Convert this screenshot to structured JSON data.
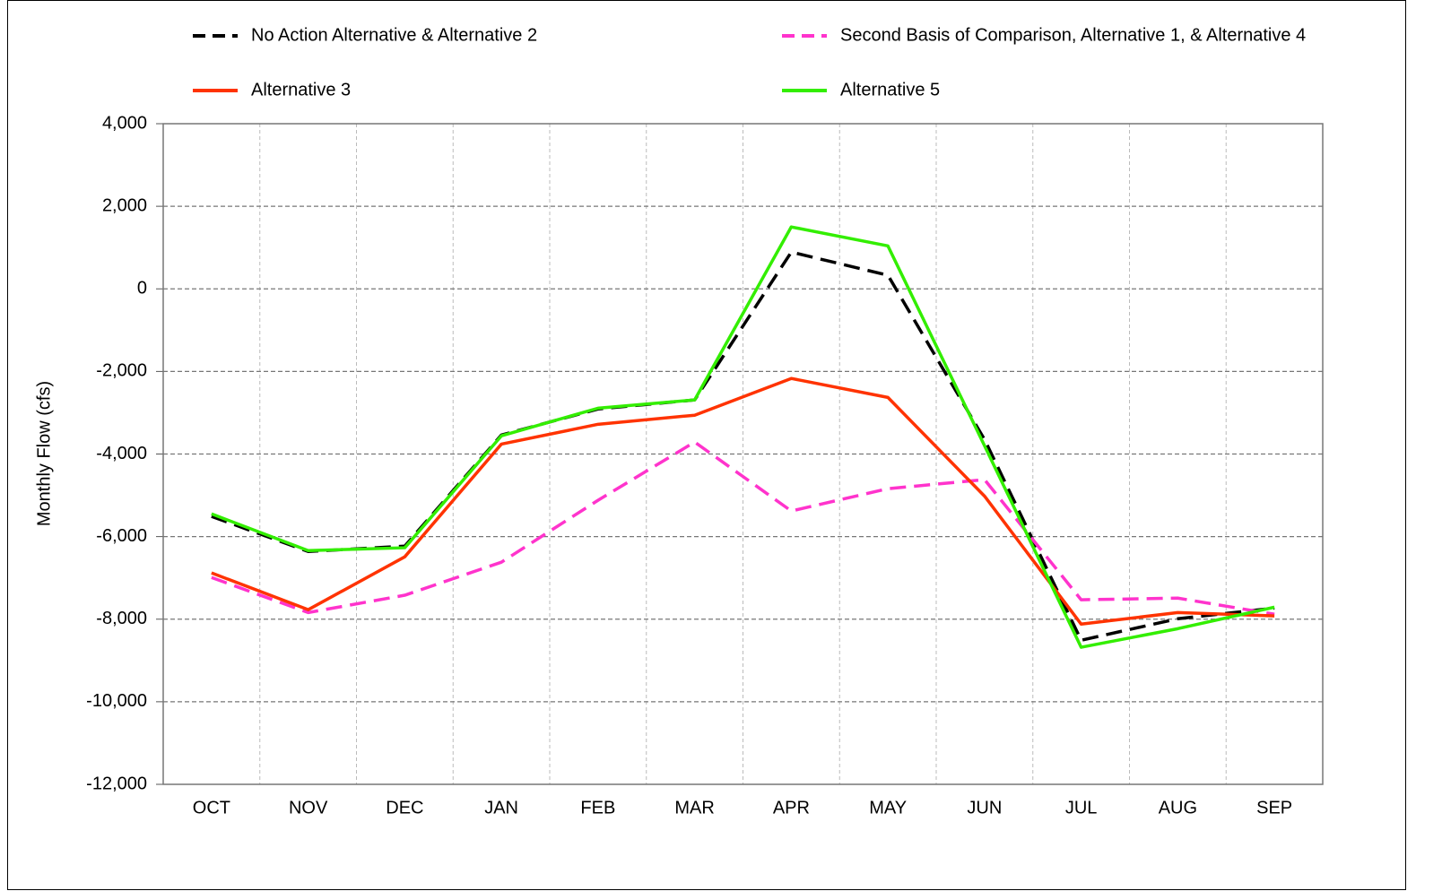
{
  "chart_data": {
    "type": "line",
    "ylabel": "Monthly Flow (cfs)",
    "categories": [
      "OCT",
      "NOV",
      "DEC",
      "JAN",
      "FEB",
      "MAR",
      "APR",
      "MAY",
      "JUN",
      "JUL",
      "AUG",
      "SEP"
    ],
    "series": [
      {
        "name": "No Action Alternative & Alternative 2",
        "color": "#000000",
        "dashed": true,
        "values": [
          -5510,
          -6360,
          -6230,
          -3540,
          -2910,
          -2690,
          890,
          330,
          -3650,
          -8510,
          -7990,
          -7730
        ]
      },
      {
        "name": "Second Basis of Comparison, Alternative 1, & Alternative 4",
        "color": "#ff33cc",
        "dashed": true,
        "values": [
          -6990,
          -7840,
          -7420,
          -6620,
          -5120,
          -3710,
          -5380,
          -4840,
          -4620,
          -7530,
          -7490,
          -7880
        ]
      },
      {
        "name": "Alternative 3",
        "color": "#ff3300",
        "dashed": false,
        "values": [
          -6880,
          -7770,
          -6490,
          -3760,
          -3280,
          -3060,
          -2170,
          -2630,
          -5020,
          -8120,
          -7840,
          -7920
        ]
      },
      {
        "name": "Alternative 5",
        "color": "#33ee00",
        "dashed": false,
        "values": [
          -5450,
          -6340,
          -6270,
          -3560,
          -2890,
          -2690,
          1500,
          1040,
          -3800,
          -8680,
          -8230,
          -7710
        ]
      }
    ],
    "ylim": [
      -12000,
      4000
    ],
    "yticks": [
      {
        "value": -12000,
        "label": "-12,000"
      },
      {
        "value": -10000,
        "label": "-10,000"
      },
      {
        "value": -8000,
        "label": "-8,000"
      },
      {
        "value": -6000,
        "label": "-6,000"
      },
      {
        "value": -4000,
        "label": "-4,000"
      },
      {
        "value": -2000,
        "label": "-2,000"
      },
      0,
      {
        "value": 2000,
        "label": "2,000"
      },
      {
        "value": 4000,
        "label": "4,000"
      }
    ],
    "grid": true,
    "legend": "top"
  }
}
